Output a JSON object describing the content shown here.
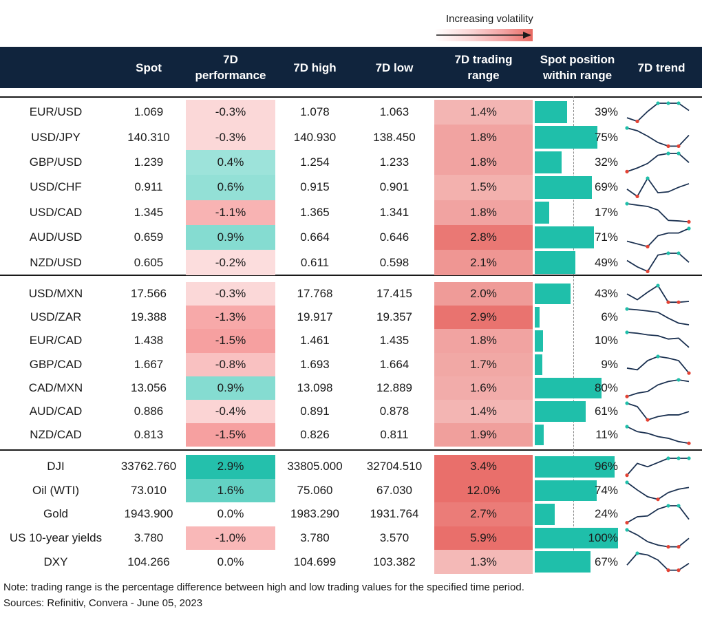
{
  "legend": {
    "label": "Increasing volatility"
  },
  "header": {
    "name": "",
    "spot": "Spot",
    "perf_line1": "7D",
    "perf_line2": "performance",
    "high": "7D high",
    "low": "7D low",
    "range_line1": "7D trading",
    "range_line2": "range",
    "pos_line1": "Spot position",
    "pos_line2": "within range",
    "trend": "7D trend"
  },
  "colors": {
    "header_bg": "#10243d",
    "bar": "#1fbfaa",
    "line": "#1a3050",
    "high_marker": "#1fbfaa",
    "low_marker": "#e34234"
  },
  "groups": [
    {
      "rows": [
        {
          "name": "EUR/USD",
          "spot": "1.069",
          "perf": "-0.3%",
          "perf_value": -0.3,
          "high": "1.078",
          "low": "1.063",
          "range": "1.4%",
          "range_value": 1.4,
          "position": "39%",
          "position_value": 39,
          "trend": [
            0.2,
            0.0,
            0.55,
            1.0,
            1.0,
            1.0,
            0.6
          ]
        },
        {
          "name": "USD/JPY",
          "spot": "140.310",
          "perf": "-0.3%",
          "perf_value": -0.3,
          "high": "140.930",
          "low": "138.450",
          "range": "1.8%",
          "range_value": 1.8,
          "position": "75%",
          "position_value": 75,
          "trend": [
            1.0,
            0.85,
            0.55,
            0.2,
            0.0,
            0.0,
            0.6
          ]
        },
        {
          "name": "GBP/USD",
          "spot": "1.239",
          "perf": "0.4%",
          "perf_value": 0.4,
          "high": "1.254",
          "low": "1.233",
          "range": "1.8%",
          "range_value": 1.8,
          "position": "32%",
          "position_value": 32,
          "trend": [
            0.0,
            0.2,
            0.45,
            0.9,
            1.0,
            1.0,
            0.5
          ]
        },
        {
          "name": "USD/CHF",
          "spot": "0.911",
          "perf": "0.6%",
          "perf_value": 0.6,
          "high": "0.915",
          "low": "0.901",
          "range": "1.5%",
          "range_value": 1.5,
          "position": "69%",
          "position_value": 69,
          "trend": [
            0.4,
            0.0,
            1.0,
            0.2,
            0.25,
            0.5,
            0.7
          ]
        },
        {
          "name": "USD/CAD",
          "spot": "1.345",
          "perf": "-1.1%",
          "perf_value": -1.1,
          "high": "1.365",
          "low": "1.341",
          "range": "1.8%",
          "range_value": 1.8,
          "position": "17%",
          "position_value": 17,
          "trend": [
            1.0,
            0.92,
            0.85,
            0.65,
            0.08,
            0.05,
            0.0
          ]
        },
        {
          "name": "AUD/USD",
          "spot": "0.659",
          "perf": "0.9%",
          "perf_value": 0.9,
          "high": "0.664",
          "low": "0.646",
          "range": "2.8%",
          "range_value": 2.8,
          "position": "71%",
          "position_value": 71,
          "trend": [
            0.3,
            0.15,
            0.0,
            0.6,
            0.75,
            0.75,
            1.0
          ]
        },
        {
          "name": "NZD/USD",
          "spot": "0.605",
          "perf": "-0.2%",
          "perf_value": -0.2,
          "high": "0.611",
          "low": "0.598",
          "range": "2.1%",
          "range_value": 2.1,
          "position": "49%",
          "position_value": 49,
          "trend": [
            0.6,
            0.25,
            0.0,
            0.9,
            1.0,
            1.0,
            0.5
          ]
        }
      ]
    },
    {
      "rows": [
        {
          "name": "USD/MXN",
          "spot": "17.566",
          "perf": "-0.3%",
          "perf_value": -0.3,
          "high": "17.768",
          "low": "17.415",
          "range": "2.0%",
          "range_value": 2.0,
          "position": "43%",
          "position_value": 43,
          "trend": [
            0.5,
            0.15,
            0.6,
            1.0,
            0.0,
            0.0,
            0.05
          ]
        },
        {
          "name": "USD/ZAR",
          "spot": "19.388",
          "perf": "-1.3%",
          "perf_value": -1.3,
          "high": "19.917",
          "low": "19.357",
          "range": "2.9%",
          "range_value": 2.9,
          "position": "6%",
          "position_value": 6,
          "trend": [
            1.0,
            0.95,
            0.88,
            0.8,
            0.45,
            0.15,
            0.05
          ]
        },
        {
          "name": "EUR/CAD",
          "spot": "1.438",
          "perf": "-1.5%",
          "perf_value": -1.5,
          "high": "1.461",
          "low": "1.435",
          "range": "1.8%",
          "range_value": 1.8,
          "position": "10%",
          "position_value": 10,
          "trend": [
            1.0,
            0.95,
            0.85,
            0.8,
            0.6,
            0.65,
            0.1
          ]
        },
        {
          "name": "GBP/CAD",
          "spot": "1.667",
          "perf": "-0.8%",
          "perf_value": -0.8,
          "high": "1.693",
          "low": "1.664",
          "range": "1.7%",
          "range_value": 1.7,
          "position": "9%",
          "position_value": 9,
          "trend": [
            0.3,
            0.2,
            0.75,
            1.0,
            0.9,
            0.75,
            0.0
          ]
        },
        {
          "name": "CAD/MXN",
          "spot": "13.056",
          "perf": "0.9%",
          "perf_value": 0.9,
          "high": "13.098",
          "low": "12.889",
          "range": "1.6%",
          "range_value": 1.6,
          "position": "80%",
          "position_value": 80,
          "trend": [
            0.0,
            0.2,
            0.3,
            0.7,
            0.9,
            1.0,
            0.9
          ]
        },
        {
          "name": "AUD/CAD",
          "spot": "0.886",
          "perf": "-0.4%",
          "perf_value": -0.4,
          "high": "0.891",
          "low": "0.878",
          "range": "1.4%",
          "range_value": 1.4,
          "position": "61%",
          "position_value": 61,
          "trend": [
            1.0,
            0.8,
            0.0,
            0.2,
            0.3,
            0.3,
            0.5
          ]
        },
        {
          "name": "NZD/CAD",
          "spot": "0.813",
          "perf": "-1.5%",
          "perf_value": -1.5,
          "high": "0.826",
          "low": "0.811",
          "range": "1.9%",
          "range_value": 1.9,
          "position": "11%",
          "position_value": 11,
          "trend": [
            1.0,
            0.7,
            0.6,
            0.4,
            0.3,
            0.1,
            0.0
          ]
        }
      ]
    },
    {
      "rows": [
        {
          "name": "DJI",
          "spot": "33762.760",
          "perf": "2.9%",
          "perf_value": 2.9,
          "high": "33805.000",
          "low": "32704.510",
          "range": "3.4%",
          "range_value": 3.4,
          "position": "96%",
          "position_value": 96,
          "trend": [
            0.0,
            0.7,
            0.5,
            0.75,
            1.0,
            1.0,
            1.0
          ]
        },
        {
          "name": "Oil (WTI)",
          "spot": "73.010",
          "perf": "1.6%",
          "perf_value": 1.6,
          "high": "75.060",
          "low": "67.030",
          "range": "12.0%",
          "range_value": 12.0,
          "position": "74%",
          "position_value": 74,
          "trend": [
            1.0,
            0.55,
            0.15,
            0.0,
            0.4,
            0.6,
            0.7
          ]
        },
        {
          "name": "Gold",
          "spot": "1943.900",
          "perf": "0.0%",
          "perf_value": 0.0,
          "high": "1983.290",
          "low": "1931.764",
          "range": "2.7%",
          "range_value": 2.7,
          "position": "24%",
          "position_value": 24,
          "trend": [
            0.0,
            0.35,
            0.4,
            0.8,
            1.0,
            1.0,
            0.2
          ]
        },
        {
          "name": "US 10-year yields",
          "spot": "3.780",
          "perf": "-1.0%",
          "perf_value": -1.0,
          "high": "3.780",
          "low": "3.570",
          "range": "5.9%",
          "range_value": 5.9,
          "position": "100%",
          "position_value": 100,
          "trend": [
            1.0,
            0.7,
            0.3,
            0.1,
            0.0,
            0.0,
            0.5
          ]
        },
        {
          "name": "DXY",
          "spot": "104.266",
          "perf": "0.0%",
          "perf_value": 0.0,
          "high": "104.699",
          "low": "103.382",
          "range": "1.3%",
          "range_value": 1.3,
          "position": "67%",
          "position_value": 67,
          "trend": [
            0.3,
            1.0,
            0.9,
            0.6,
            0.0,
            0.0,
            0.4
          ]
        }
      ]
    }
  ],
  "notes": {
    "note": "Note: trading range is the percentage difference between high and low trading values for the specified time period.",
    "sources": "Sources: Refinitiv, Convera - June 05, 2023"
  }
}
